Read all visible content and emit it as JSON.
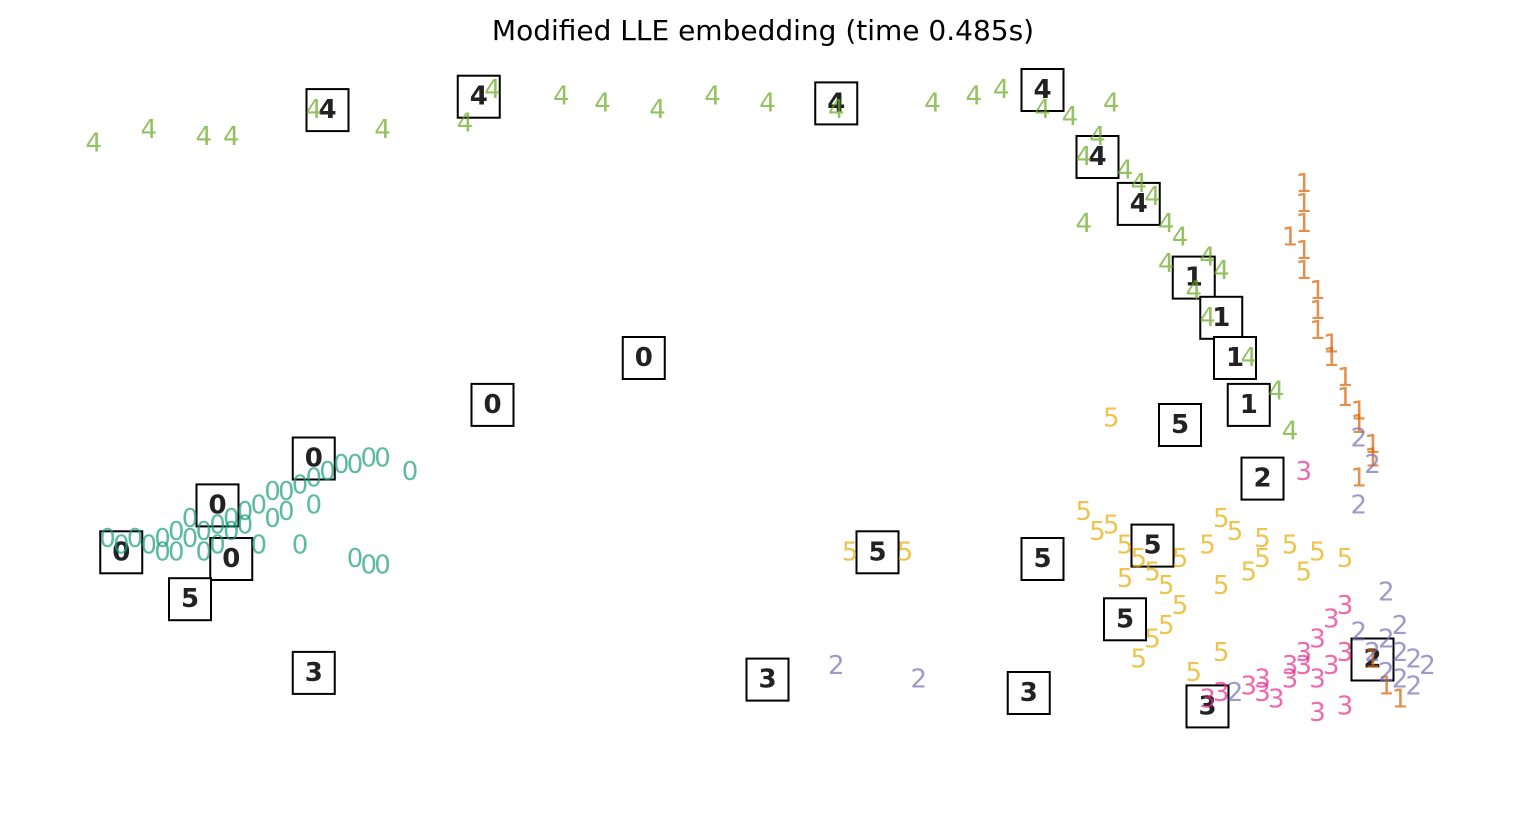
{
  "chart_data": {
    "type": "scatter",
    "title": "Modified LLE embedding (time 0.485s)",
    "xlabel": "",
    "ylabel": "",
    "xlim": [
      0,
      1
    ],
    "ylim": [
      0,
      1
    ],
    "axes_visible": false,
    "grid": false,
    "marker": "digit-label",
    "colors": {
      "0": "#1b9e77",
      "1": "#d95f02",
      "2": "#7570b3",
      "3": "#e7298a",
      "4": "#66a61e",
      "5": "#e6ab02"
    },
    "series": [
      {
        "label": "0",
        "points": [
          [
            0.02,
            0.33
          ],
          [
            0.03,
            0.32
          ],
          [
            0.04,
            0.33
          ],
          [
            0.05,
            0.32
          ],
          [
            0.06,
            0.33
          ],
          [
            0.07,
            0.34
          ],
          [
            0.08,
            0.33
          ],
          [
            0.09,
            0.34
          ],
          [
            0.1,
            0.35
          ],
          [
            0.11,
            0.36
          ],
          [
            0.12,
            0.37
          ],
          [
            0.13,
            0.38
          ],
          [
            0.14,
            0.4
          ],
          [
            0.15,
            0.4
          ],
          [
            0.16,
            0.41
          ],
          [
            0.17,
            0.42
          ],
          [
            0.18,
            0.43
          ],
          [
            0.19,
            0.44
          ],
          [
            0.2,
            0.44
          ],
          [
            0.21,
            0.45
          ],
          [
            0.22,
            0.45
          ],
          [
            0.24,
            0.43
          ],
          [
            0.09,
            0.31
          ],
          [
            0.1,
            0.32
          ],
          [
            0.07,
            0.31
          ],
          [
            0.12,
            0.35
          ],
          [
            0.14,
            0.36
          ],
          [
            0.13,
            0.32
          ],
          [
            0.16,
            0.32
          ],
          [
            0.2,
            0.3
          ],
          [
            0.21,
            0.29
          ],
          [
            0.22,
            0.29
          ],
          [
            0.11,
            0.34
          ],
          [
            0.08,
            0.36
          ],
          [
            0.06,
            0.31
          ],
          [
            0.15,
            0.37
          ],
          [
            0.17,
            0.38
          ]
        ]
      },
      {
        "label": "1",
        "points": [
          [
            0.89,
            0.86
          ],
          [
            0.89,
            0.83
          ],
          [
            0.89,
            0.8
          ],
          [
            0.88,
            0.78
          ],
          [
            0.89,
            0.76
          ],
          [
            0.89,
            0.73
          ],
          [
            0.9,
            0.7
          ],
          [
            0.9,
            0.67
          ],
          [
            0.9,
            0.64
          ],
          [
            0.91,
            0.62
          ],
          [
            0.91,
            0.6
          ],
          [
            0.92,
            0.57
          ],
          [
            0.92,
            0.54
          ],
          [
            0.93,
            0.52
          ],
          [
            0.93,
            0.5
          ],
          [
            0.94,
            0.47
          ],
          [
            0.94,
            0.45
          ],
          [
            0.93,
            0.42
          ],
          [
            0.94,
            0.15
          ],
          [
            0.95,
            0.11
          ],
          [
            0.96,
            0.09
          ]
        ]
      },
      {
        "label": "2",
        "points": [
          [
            0.93,
            0.48
          ],
          [
            0.94,
            0.44
          ],
          [
            0.93,
            0.38
          ],
          [
            0.95,
            0.25
          ],
          [
            0.96,
            0.2
          ],
          [
            0.95,
            0.18
          ],
          [
            0.96,
            0.16
          ],
          [
            0.97,
            0.15
          ],
          [
            0.98,
            0.14
          ],
          [
            0.94,
            0.16
          ],
          [
            0.96,
            0.12
          ],
          [
            0.84,
            0.1
          ],
          [
            0.61,
            0.12
          ],
          [
            0.55,
            0.14
          ],
          [
            0.95,
            0.13
          ],
          [
            0.97,
            0.11
          ],
          [
            0.93,
            0.19
          ]
        ]
      },
      {
        "label": "3",
        "points": [
          [
            0.89,
            0.43
          ],
          [
            0.92,
            0.23
          ],
          [
            0.91,
            0.21
          ],
          [
            0.9,
            0.18
          ],
          [
            0.89,
            0.16
          ],
          [
            0.88,
            0.14
          ],
          [
            0.86,
            0.12
          ],
          [
            0.85,
            0.11
          ],
          [
            0.82,
            0.09
          ],
          [
            0.83,
            0.1
          ],
          [
            0.88,
            0.12
          ],
          [
            0.9,
            0.12
          ],
          [
            0.91,
            0.14
          ],
          [
            0.92,
            0.16
          ],
          [
            0.89,
            0.14
          ],
          [
            0.87,
            0.09
          ],
          [
            0.9,
            0.07
          ],
          [
            0.92,
            0.08
          ],
          [
            0.86,
            0.1
          ]
        ]
      },
      {
        "label": "4",
        "points": [
          [
            0.01,
            0.92
          ],
          [
            0.05,
            0.94
          ],
          [
            0.09,
            0.93
          ],
          [
            0.11,
            0.93
          ],
          [
            0.17,
            0.97
          ],
          [
            0.22,
            0.94
          ],
          [
            0.28,
            0.95
          ],
          [
            0.3,
            1
          ],
          [
            0.35,
            0.99
          ],
          [
            0.38,
            0.98
          ],
          [
            0.42,
            0.97
          ],
          [
            0.46,
            0.99
          ],
          [
            0.5,
            0.98
          ],
          [
            0.55,
            0.97
          ],
          [
            0.62,
            0.98
          ],
          [
            0.65,
            0.99
          ],
          [
            0.67,
            1
          ],
          [
            0.7,
            0.97
          ],
          [
            0.72,
            0.96
          ],
          [
            0.75,
            0.98
          ],
          [
            0.74,
            0.93
          ],
          [
            0.73,
            0.9
          ],
          [
            0.76,
            0.88
          ],
          [
            0.77,
            0.86
          ],
          [
            0.78,
            0.84
          ],
          [
            0.79,
            0.8
          ],
          [
            0.8,
            0.78
          ],
          [
            0.82,
            0.75
          ],
          [
            0.83,
            0.73
          ],
          [
            0.81,
            0.7
          ],
          [
            0.73,
            0.8
          ],
          [
            0.79,
            0.74
          ],
          [
            0.82,
            0.66
          ],
          [
            0.85,
            0.6
          ],
          [
            0.87,
            0.55
          ],
          [
            0.88,
            0.49
          ]
        ]
      },
      {
        "label": "5",
        "points": [
          [
            0.75,
            0.51
          ],
          [
            0.56,
            0.31
          ],
          [
            0.6,
            0.31
          ],
          [
            0.73,
            0.37
          ],
          [
            0.74,
            0.34
          ],
          [
            0.76,
            0.32
          ],
          [
            0.77,
            0.3
          ],
          [
            0.78,
            0.28
          ],
          [
            0.79,
            0.26
          ],
          [
            0.8,
            0.3
          ],
          [
            0.82,
            0.32
          ],
          [
            0.84,
            0.34
          ],
          [
            0.86,
            0.33
          ],
          [
            0.88,
            0.32
          ],
          [
            0.9,
            0.31
          ],
          [
            0.92,
            0.3
          ],
          [
            0.85,
            0.28
          ],
          [
            0.83,
            0.26
          ],
          [
            0.8,
            0.23
          ],
          [
            0.79,
            0.2
          ],
          [
            0.78,
            0.18
          ],
          [
            0.77,
            0.15
          ],
          [
            0.81,
            0.13
          ],
          [
            0.83,
            0.16
          ],
          [
            0.86,
            0.3
          ],
          [
            0.89,
            0.28
          ],
          [
            0.76,
            0.27
          ],
          [
            0.75,
            0.35
          ],
          [
            0.83,
            0.36
          ]
        ]
      }
    ],
    "thumbnails": [
      {
        "label": "0",
        "x": 0.03,
        "y": 0.31
      },
      {
        "label": "0",
        "x": 0.1,
        "y": 0.38
      },
      {
        "label": "0",
        "x": 0.11,
        "y": 0.3
      },
      {
        "label": "0",
        "x": 0.17,
        "y": 0.45
      },
      {
        "label": "0",
        "x": 0.3,
        "y": 0.53
      },
      {
        "label": "0",
        "x": 0.41,
        "y": 0.6
      },
      {
        "label": "4",
        "x": 0.18,
        "y": 0.97
      },
      {
        "label": "4",
        "x": 0.29,
        "y": 0.99
      },
      {
        "label": "4",
        "x": 0.55,
        "y": 0.98
      },
      {
        "label": "4",
        "x": 0.7,
        "y": 1.0
      },
      {
        "label": "4",
        "x": 0.74,
        "y": 0.9
      },
      {
        "label": "4",
        "x": 0.77,
        "y": 0.83
      },
      {
        "label": "1",
        "x": 0.81,
        "y": 0.72
      },
      {
        "label": "1",
        "x": 0.83,
        "y": 0.66
      },
      {
        "label": "1",
        "x": 0.84,
        "y": 0.6
      },
      {
        "label": "1",
        "x": 0.85,
        "y": 0.53
      },
      {
        "label": "2",
        "x": 0.86,
        "y": 0.42
      },
      {
        "label": "5",
        "x": 0.8,
        "y": 0.5
      },
      {
        "label": "5",
        "x": 0.58,
        "y": 0.31
      },
      {
        "label": "5",
        "x": 0.7,
        "y": 0.3
      },
      {
        "label": "5",
        "x": 0.08,
        "y": 0.24
      },
      {
        "label": "5",
        "x": 0.76,
        "y": 0.21
      },
      {
        "label": "3",
        "x": 0.17,
        "y": 0.13
      },
      {
        "label": "3",
        "x": 0.5,
        "y": 0.12
      },
      {
        "label": "3",
        "x": 0.69,
        "y": 0.1
      },
      {
        "label": "5",
        "x": 0.78,
        "y": 0.32
      },
      {
        "label": "2",
        "x": 0.94,
        "y": 0.15
      },
      {
        "label": "3",
        "x": 0.82,
        "y": 0.08
      }
    ]
  }
}
